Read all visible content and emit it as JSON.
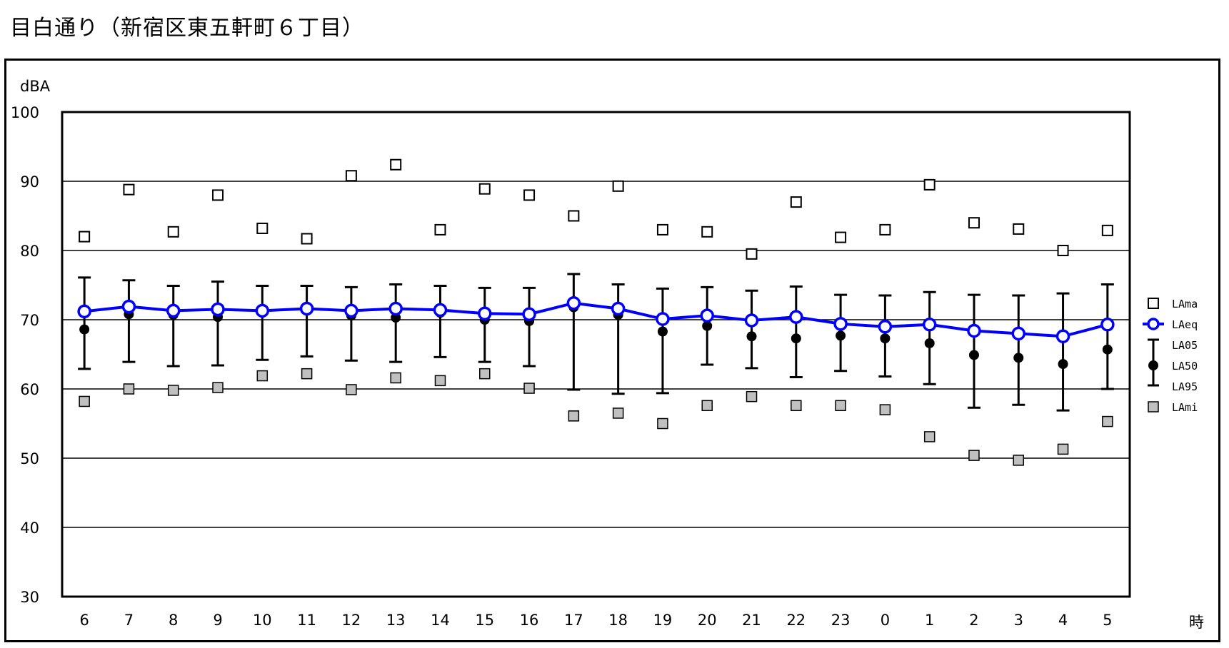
{
  "page_title": "目白通り（新宿区東五軒町６丁目）",
  "chart_data": {
    "type": "scatter",
    "title": "",
    "ylabel": "dBA",
    "xlabel": "時",
    "ylim": [
      30,
      100
    ],
    "yticks": [
      30,
      40,
      50,
      60,
      70,
      80,
      90,
      100
    ],
    "grid": true,
    "legend_position": "right",
    "categories": [
      "6",
      "7",
      "8",
      "9",
      "10",
      "11",
      "12",
      "13",
      "14",
      "15",
      "16",
      "17",
      "18",
      "19",
      "20",
      "21",
      "22",
      "23",
      "0",
      "1",
      "2",
      "3",
      "4",
      "5"
    ],
    "series": [
      {
        "name": "LAma",
        "marker": "open-square",
        "values": [
          82,
          88.8,
          82.7,
          88,
          83.2,
          81.7,
          90.8,
          92.4,
          83,
          88.9,
          88,
          85,
          89.3,
          83,
          82.7,
          79.5,
          87,
          81.9,
          83,
          89.5,
          84,
          83.1,
          80,
          82.9
        ]
      },
      {
        "name": "LAeq",
        "marker": "open-circle-line",
        "color": "#0000ff",
        "values": [
          71.2,
          71.9,
          71.3,
          71.5,
          71.3,
          71.6,
          71.3,
          71.6,
          71.4,
          70.9,
          70.8,
          72.4,
          71.6,
          70.1,
          70.6,
          69.9,
          70.4,
          69.4,
          69,
          69.3,
          68.4,
          68,
          67.6,
          69.3
        ]
      },
      {
        "name": "LA05",
        "marker": "error-bar-top",
        "values": [
          76.1,
          75.7,
          74.9,
          75.5,
          74.9,
          74.9,
          74.7,
          75.1,
          74.9,
          74.6,
          74.6,
          76.6,
          75.1,
          74.5,
          74.7,
          74.2,
          74.8,
          73.6,
          73.5,
          74,
          73.6,
          73.5,
          73.8,
          75.1
        ]
      },
      {
        "name": "LA50",
        "marker": "filled-circle",
        "values": [
          68.6,
          70.8,
          70.7,
          70.4,
          71,
          71.3,
          70.6,
          70.3,
          71,
          70,
          69.8,
          71.8,
          70.7,
          68.3,
          69.1,
          67.6,
          67.3,
          67.7,
          67.3,
          66.6,
          64.9,
          64.5,
          63.6,
          65.7
        ]
      },
      {
        "name": "LA95",
        "marker": "error-bar-bottom",
        "values": [
          62.9,
          63.9,
          63.3,
          63.4,
          64.2,
          64.7,
          64.1,
          63.9,
          64.6,
          63.9,
          63.3,
          59.9,
          59.3,
          59.4,
          63.5,
          63,
          61.7,
          62.6,
          61.8,
          60.7,
          57.3,
          57.7,
          56.9,
          60
        ]
      },
      {
        "name": "LAmi",
        "marker": "gray-square",
        "color": "#c0c0c0",
        "values": [
          58.2,
          60,
          59.8,
          60.2,
          61.9,
          62.2,
          59.9,
          61.6,
          61.2,
          62.2,
          60.1,
          56.1,
          56.5,
          55,
          57.6,
          58.9,
          57.6,
          57.6,
          57,
          53.1,
          50.4,
          49.7,
          51.3,
          55.3
        ]
      }
    ]
  }
}
